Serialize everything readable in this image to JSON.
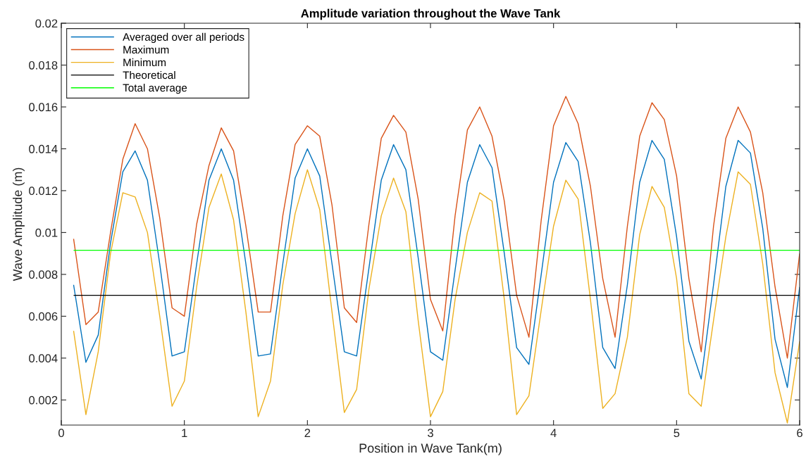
{
  "chart_data": {
    "type": "line",
    "title": "Amplitude variation throughout the Wave Tank",
    "xlabel": "Position in Wave Tank(m)",
    "ylabel": "Wave Amplitude (m)",
    "xlim": [
      0,
      6
    ],
    "ylim": [
      0.0008,
      0.02
    ],
    "xticks": [
      0,
      1,
      2,
      3,
      4,
      5,
      6
    ],
    "yticks": [
      0.002,
      0.004,
      0.006,
      0.008,
      0.01,
      0.012,
      0.014,
      0.016,
      0.018,
      0.02
    ],
    "grid": false,
    "legend": "top left",
    "marker": "none",
    "line_style": "solid",
    "x": [
      0.1,
      0.2,
      0.3,
      0.4,
      0.5,
      0.6,
      0.7,
      0.8,
      0.9,
      1.0,
      1.1,
      1.2,
      1.3,
      1.4,
      1.5,
      1.6,
      1.7,
      1.8,
      1.9,
      2.0,
      2.1,
      2.2,
      2.3,
      2.4,
      2.5,
      2.6,
      2.7,
      2.8,
      2.9,
      3.0,
      3.1,
      3.2,
      3.3,
      3.4,
      3.5,
      3.6,
      3.7,
      3.8,
      3.9,
      4.0,
      4.1,
      4.2,
      4.3,
      4.4,
      4.5,
      4.6,
      4.7,
      4.8,
      4.9,
      5.0,
      5.1,
      5.2,
      5.3,
      5.4,
      5.5,
      5.6,
      5.7,
      5.8,
      5.9,
      6.0
    ],
    "series": [
      {
        "name": "Averaged over all periods",
        "color": "#0072bd",
        "values": [
          0.0075,
          0.0038,
          0.0051,
          0.0095,
          0.0129,
          0.0139,
          0.0125,
          0.0085,
          0.0041,
          0.0043,
          0.0085,
          0.0125,
          0.014,
          0.0125,
          0.0085,
          0.0041,
          0.0042,
          0.0085,
          0.0126,
          0.014,
          0.0127,
          0.0085,
          0.0043,
          0.0041,
          0.0083,
          0.0125,
          0.0142,
          0.013,
          0.0088,
          0.0043,
          0.0039,
          0.0082,
          0.0124,
          0.0142,
          0.0131,
          0.009,
          0.0045,
          0.0037,
          0.008,
          0.0124,
          0.0143,
          0.0134,
          0.0095,
          0.0045,
          0.0035,
          0.0075,
          0.0124,
          0.0144,
          0.0135,
          0.0098,
          0.0048,
          0.003,
          0.0075,
          0.0122,
          0.0144,
          0.0138,
          0.0102,
          0.0049,
          0.0026,
          0.0074
        ]
      },
      {
        "name": "Maximum",
        "color": "#d95319",
        "values": [
          0.0097,
          0.0056,
          0.0062,
          0.01,
          0.0135,
          0.0152,
          0.014,
          0.0107,
          0.0064,
          0.006,
          0.0104,
          0.0132,
          0.015,
          0.0139,
          0.0103,
          0.0062,
          0.0062,
          0.0108,
          0.0142,
          0.0151,
          0.0146,
          0.0113,
          0.0064,
          0.0057,
          0.0104,
          0.0145,
          0.0156,
          0.0148,
          0.0116,
          0.0068,
          0.0053,
          0.0108,
          0.0149,
          0.016,
          0.0146,
          0.0115,
          0.007,
          0.005,
          0.0106,
          0.0151,
          0.0165,
          0.0152,
          0.0122,
          0.0078,
          0.005,
          0.0103,
          0.0146,
          0.0162,
          0.0154,
          0.0127,
          0.0078,
          0.0043,
          0.0103,
          0.0145,
          0.016,
          0.0148,
          0.0119,
          0.0074,
          0.004,
          0.009
        ]
      },
      {
        "name": "Minimum",
        "color": "#edb120",
        "values": [
          0.0053,
          0.0013,
          0.0043,
          0.009,
          0.0119,
          0.0117,
          0.01,
          0.006,
          0.0017,
          0.0029,
          0.0074,
          0.0112,
          0.0128,
          0.0106,
          0.0062,
          0.0012,
          0.0029,
          0.0075,
          0.0109,
          0.013,
          0.0111,
          0.0062,
          0.0014,
          0.0025,
          0.0073,
          0.0108,
          0.0126,
          0.011,
          0.0058,
          0.0012,
          0.0024,
          0.0068,
          0.01,
          0.0119,
          0.0115,
          0.0068,
          0.0013,
          0.0022,
          0.0063,
          0.0103,
          0.0125,
          0.0116,
          0.0068,
          0.0016,
          0.0023,
          0.005,
          0.0099,
          0.0122,
          0.0112,
          0.0078,
          0.0023,
          0.0017,
          0.0058,
          0.0098,
          0.0129,
          0.0123,
          0.0085,
          0.0033,
          0.0009,
          0.0048
        ]
      },
      {
        "name": "Theoretical",
        "color": "#000000",
        "values": [
          0.007,
          0.007,
          0.007,
          0.007,
          0.007,
          0.007,
          0.007,
          0.007,
          0.007,
          0.007,
          0.007,
          0.007,
          0.007,
          0.007,
          0.007,
          0.007,
          0.007,
          0.007,
          0.007,
          0.007,
          0.007,
          0.007,
          0.007,
          0.007,
          0.007,
          0.007,
          0.007,
          0.007,
          0.007,
          0.007,
          0.007,
          0.007,
          0.007,
          0.007,
          0.007,
          0.007,
          0.007,
          0.007,
          0.007,
          0.007,
          0.007,
          0.007,
          0.007,
          0.007,
          0.007,
          0.007,
          0.007,
          0.007,
          0.007,
          0.007,
          0.007,
          0.007,
          0.007,
          0.007,
          0.007,
          0.007,
          0.007,
          0.007,
          0.007,
          0.007
        ]
      },
      {
        "name": "Total average",
        "color": "#00ff00",
        "values": [
          0.00915,
          0.00915,
          0.00915,
          0.00915,
          0.00915,
          0.00915,
          0.00915,
          0.00915,
          0.00915,
          0.00915,
          0.00915,
          0.00915,
          0.00915,
          0.00915,
          0.00915,
          0.00915,
          0.00915,
          0.00915,
          0.00915,
          0.00915,
          0.00915,
          0.00915,
          0.00915,
          0.00915,
          0.00915,
          0.00915,
          0.00915,
          0.00915,
          0.00915,
          0.00915,
          0.00915,
          0.00915,
          0.00915,
          0.00915,
          0.00915,
          0.00915,
          0.00915,
          0.00915,
          0.00915,
          0.00915,
          0.00915,
          0.00915,
          0.00915,
          0.00915,
          0.00915,
          0.00915,
          0.00915,
          0.00915,
          0.00915,
          0.00915,
          0.00915,
          0.00915,
          0.00915,
          0.00915,
          0.00915,
          0.00915,
          0.00915,
          0.00915,
          0.00915,
          0.00915
        ]
      }
    ]
  }
}
